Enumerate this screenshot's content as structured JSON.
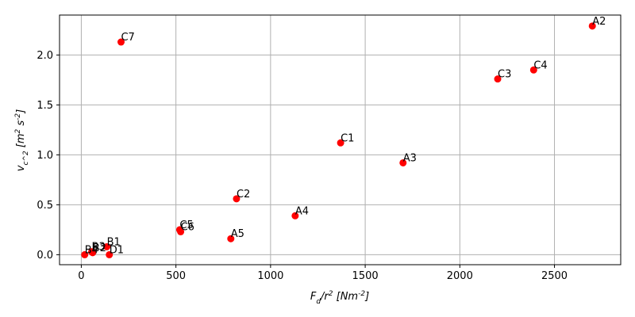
{
  "chart_data": {
    "type": "scatter",
    "title": "",
    "xlabel": "F_d/r^2  [Nm^-2]",
    "ylabel": "v_c^2  [m^2 s^-2]",
    "xlim": [
      -115,
      2850
    ],
    "ylim": [
      -0.1,
      2.4
    ],
    "grid": true,
    "marker_color": "#ff0000",
    "x_ticks": [
      0,
      500,
      1000,
      1500,
      2000,
      2500
    ],
    "x_tick_labels": [
      "0",
      "500",
      "1000",
      "1500",
      "2000",
      "2500"
    ],
    "y_ticks": [
      0.0,
      0.5,
      1.0,
      1.5,
      2.0
    ],
    "y_tick_labels": [
      "0.0",
      "0.5",
      "1.0",
      "1.5",
      "2.0"
    ],
    "points": [
      {
        "label": "A2",
        "x": 2700,
        "y": 2.29
      },
      {
        "label": "C4",
        "x": 2390,
        "y": 1.85
      },
      {
        "label": "C3",
        "x": 2200,
        "y": 1.76
      },
      {
        "label": "C7",
        "x": 210,
        "y": 2.13
      },
      {
        "label": "C1",
        "x": 1370,
        "y": 1.12
      },
      {
        "label": "A3",
        "x": 1700,
        "y": 0.92
      },
      {
        "label": "C2",
        "x": 820,
        "y": 0.56
      },
      {
        "label": "A4",
        "x": 1130,
        "y": 0.39
      },
      {
        "label": "C5",
        "x": 520,
        "y": 0.25
      },
      {
        "label": "C6",
        "x": 525,
        "y": 0.23
      },
      {
        "label": "A5",
        "x": 790,
        "y": 0.16
      },
      {
        "label": "B1",
        "x": 135,
        "y": 0.08
      },
      {
        "label": "B2",
        "x": 60,
        "y": 0.02
      },
      {
        "label": "B3",
        "x": 55,
        "y": 0.03
      },
      {
        "label": "B4",
        "x": 18,
        "y": 0.0
      },
      {
        "label": "D1",
        "x": 148,
        "y": 0.0
      }
    ]
  }
}
